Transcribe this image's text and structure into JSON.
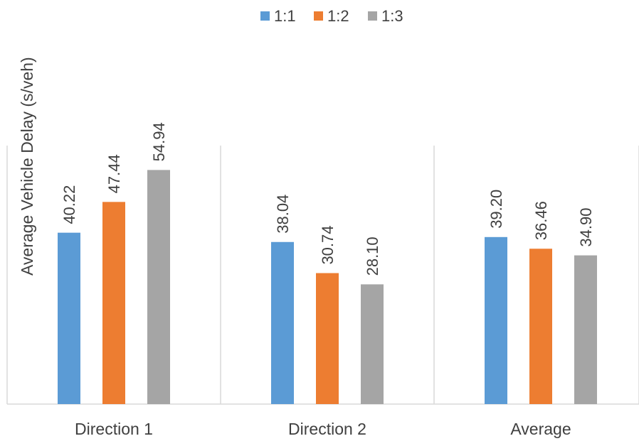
{
  "chart_data": {
    "type": "bar",
    "title": "",
    "xlabel": "",
    "ylabel": "Average Vehicle Delay (s/veh)",
    "categories": [
      "Direction 1",
      "Direction 2",
      "Average"
    ],
    "series": [
      {
        "name": "1:1",
        "color": "#5B9BD5",
        "values": [
          40.22,
          38.04,
          39.2
        ],
        "labels": [
          "40.22",
          "38.04",
          "39.20"
        ]
      },
      {
        "name": "1:2",
        "color": "#ED7D31",
        "values": [
          47.44,
          30.74,
          36.46
        ],
        "labels": [
          "47.44",
          "30.74",
          "36.46"
        ]
      },
      {
        "name": "1:3",
        "color": "#A5A5A5",
        "values": [
          54.94,
          28.1,
          34.9
        ],
        "labels": [
          "54.94",
          "28.10",
          "34.90"
        ]
      }
    ],
    "ylim": [
      0,
      60
    ],
    "grid": false,
    "legend": "top-center",
    "colors": {
      "axis": "#D9D9D9",
      "text": "#404040"
    }
  }
}
